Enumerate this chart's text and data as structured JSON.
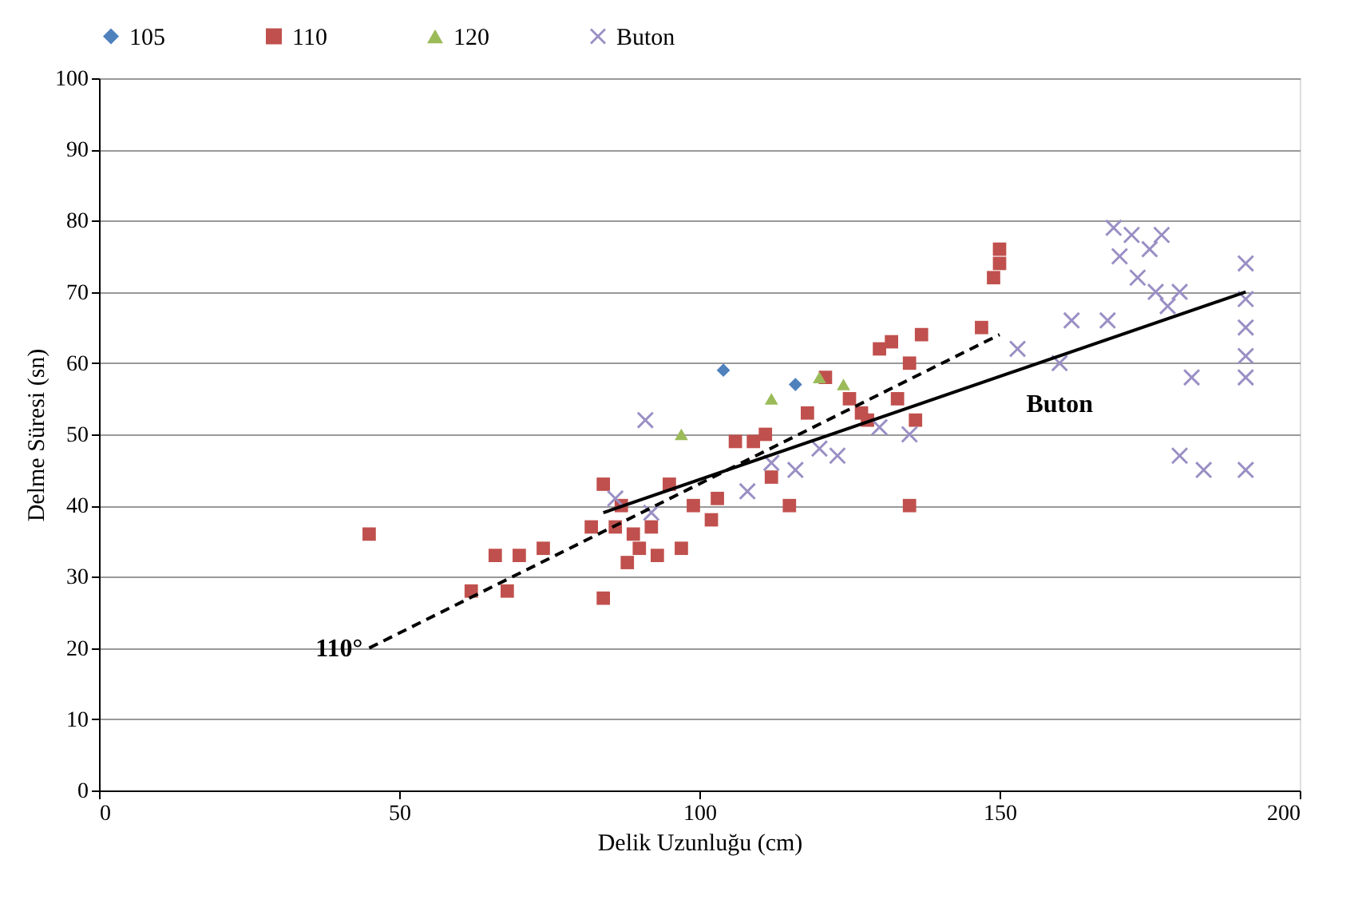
{
  "chart_data": {
    "type": "scatter",
    "xlabel": "Delik Uzunluğu (cm)",
    "ylabel": "Delme Süresi (sn)",
    "xlim": [
      0,
      200
    ],
    "xticks": [
      0,
      50,
      100,
      150,
      200
    ],
    "ylim": [
      0,
      100
    ],
    "yticks": [
      0,
      10,
      20,
      30,
      40,
      50,
      60,
      70,
      80,
      90,
      100
    ],
    "grid": "y",
    "legend": "top",
    "series": [
      {
        "name": "105",
        "color": "#4f81bd",
        "marker": "diamond",
        "x": [
          104,
          116
        ],
        "values": [
          59,
          57
        ]
      },
      {
        "name": "110",
        "color": "#c0504d",
        "marker": "square",
        "x": [
          45,
          62,
          66,
          68,
          70,
          74,
          82,
          84,
          84,
          86,
          87,
          88,
          89,
          90,
          92,
          93,
          95,
          97,
          99,
          102,
          103,
          106,
          109,
          111,
          112,
          115,
          118,
          121,
          125,
          127,
          128,
          130,
          132,
          133,
          135,
          135,
          136,
          137,
          147,
          149,
          150,
          150
        ],
        "values": [
          36,
          28,
          33,
          28,
          33,
          34,
          37,
          43,
          27,
          37,
          40,
          32,
          36,
          34,
          37,
          33,
          43,
          34,
          40,
          38,
          41,
          49,
          49,
          50,
          44,
          40,
          53,
          58,
          55,
          53,
          52,
          62,
          63,
          55,
          40,
          60,
          52,
          64,
          65,
          72,
          76,
          74
        ]
      },
      {
        "name": "120",
        "color": "#9bbb59",
        "marker": "triangle",
        "x": [
          97,
          112,
          120,
          124
        ],
        "values": [
          50,
          55,
          58,
          57
        ]
      },
      {
        "name": "Buton",
        "color": "#9a8fc4",
        "marker": "cross",
        "x": [
          91,
          86,
          92,
          108,
          112,
          116,
          120,
          123,
          130,
          135,
          153,
          160,
          162,
          168,
          169,
          170,
          172,
          173,
          175,
          177,
          176,
          178,
          180,
          180,
          182,
          184,
          191,
          191,
          191,
          191,
          191,
          191
        ],
        "values": [
          52,
          41,
          39,
          42,
          46,
          45,
          48,
          47,
          51,
          50,
          62,
          60,
          66,
          66,
          79,
          75,
          78,
          72,
          76,
          78,
          70,
          68,
          70,
          47,
          58,
          45,
          74,
          69,
          65,
          61,
          58,
          45
        ]
      },
      {
        "type": "line",
        "color": "#000000",
        "line_style": "dashed",
        "marker": "none",
        "x": [
          45,
          150
        ],
        "values": [
          20,
          64
        ]
      },
      {
        "type": "line",
        "color": "#000000",
        "line_style": "solid",
        "marker": "none",
        "x": [
          84,
          191
        ],
        "values": [
          39,
          70
        ]
      }
    ],
    "annotations": [
      {
        "text": "110°",
        "x": 45,
        "y": 20
      },
      {
        "text": "Buton",
        "x": 160,
        "y": 61
      }
    ]
  }
}
